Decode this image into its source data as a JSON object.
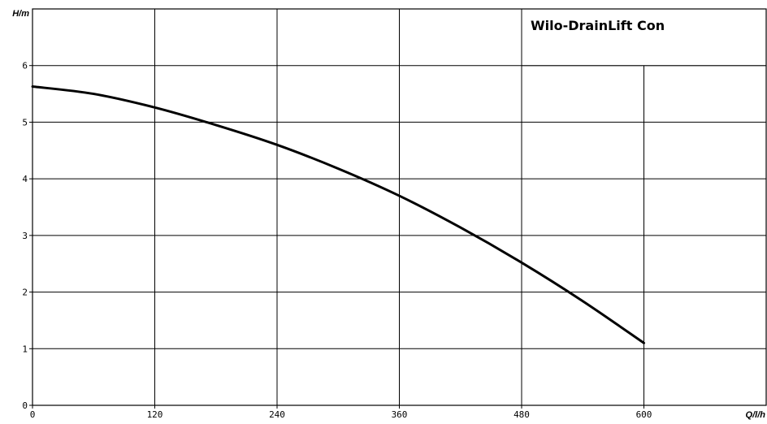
{
  "chart_data": {
    "type": "line",
    "title": "Wilo-DrainLift Con",
    "xlabel": "Q/l/h",
    "ylabel": "H/m",
    "xlim": [
      0,
      720
    ],
    "ylim": [
      0,
      7
    ],
    "x_ticks": [
      0,
      120,
      240,
      360,
      480,
      600
    ],
    "y_ticks": [
      0,
      1,
      2,
      3,
      4,
      5,
      6
    ],
    "grid": true,
    "series": [
      {
        "x": [
          0,
          60,
          120,
          180,
          240,
          300,
          360,
          420,
          480,
          540,
          600
        ],
        "y": [
          5.63,
          5.5,
          5.26,
          4.95,
          4.6,
          4.18,
          3.7,
          3.14,
          2.52,
          1.84,
          1.1
        ]
      }
    ]
  }
}
